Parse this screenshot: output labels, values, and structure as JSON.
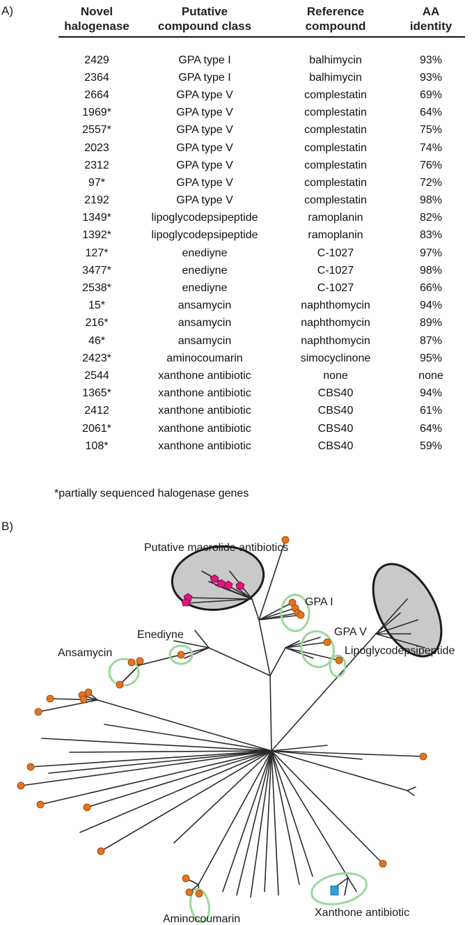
{
  "panel_a": {
    "label": "A)",
    "headers": [
      [
        "Novel",
        "halogenase"
      ],
      [
        "Putative",
        "compound class"
      ],
      [
        "Reference",
        "compound"
      ],
      [
        "AA",
        "identity"
      ]
    ],
    "rows": [
      [
        "2429",
        "GPA type I",
        "balhimycin",
        "93%"
      ],
      [
        "2364",
        "GPA type I",
        "balhimycin",
        "93%"
      ],
      [
        "2664",
        "GPA type V",
        "complestatin",
        "69%"
      ],
      [
        "1969*",
        "GPA type V",
        "complestatin",
        "64%"
      ],
      [
        "2557*",
        "GPA type V",
        "complestatin",
        "75%"
      ],
      [
        "2023",
        "GPA type V",
        "complestatin",
        "74%"
      ],
      [
        "2312",
        "GPA type V",
        "complestatin",
        "76%"
      ],
      [
        "97*",
        "GPA type V",
        "complestatin",
        "72%"
      ],
      [
        "2192",
        "GPA type V",
        "complestatin",
        "98%"
      ],
      [
        "1349*",
        "lipoglycodepsipeptide",
        "ramoplanin",
        "82%"
      ],
      [
        "1392*",
        "lipoglycodepsipeptide",
        "ramoplanin",
        "83%"
      ],
      [
        "127*",
        "enediyne",
        "C-1027",
        "97%"
      ],
      [
        "3477*",
        "enediyne",
        "C-1027",
        "98%"
      ],
      [
        "2538*",
        "enediyne",
        "C-1027",
        "66%"
      ],
      [
        "15*",
        "ansamycin",
        "naphthomycin",
        "94%"
      ],
      [
        "216*",
        "ansamycin",
        "naphthomycin",
        "89%"
      ],
      [
        "46*",
        "ansamycin",
        "naphthomycin",
        "87%"
      ],
      [
        "2423*",
        "aminocoumarin",
        "simocyclinone",
        "95%"
      ],
      [
        "2544",
        "xanthone antibiotic",
        "none",
        "none"
      ],
      [
        "1365*",
        "xanthone antibiotic",
        "CBS40",
        "94%"
      ],
      [
        "2412",
        "xanthone antibiotic",
        "CBS40",
        "61%"
      ],
      [
        "2061*",
        "xanthone antibiotic",
        "CBS40",
        "64%"
      ],
      [
        "108*",
        "xanthone antibiotic",
        "CBS40",
        "59%"
      ]
    ],
    "footnote": "*partially sequenced halogenase genes"
  },
  "panel_b": {
    "label": "B)",
    "clade_labels": {
      "macrolide": "Putative macrolide antibiotics",
      "gpa_i": "GPA I",
      "gpa_v": "GPA V",
      "lipo": "Lipoglycodepsipeptide",
      "enediyne": "Enediyne",
      "ansamycin": "Ansamycin",
      "aminocoumarin": "Aminocoumarin",
      "xanthone": "Xanthone antibiotic"
    },
    "colors": {
      "branch": "#2b2b2b",
      "leaf_marker": "#e6741e",
      "macrolide_marker": "#e0147c",
      "xanthone_marker": "#29a6e0",
      "clade_ring": "#9ad89a",
      "shaded_clade": "#c9c9c9"
    }
  }
}
